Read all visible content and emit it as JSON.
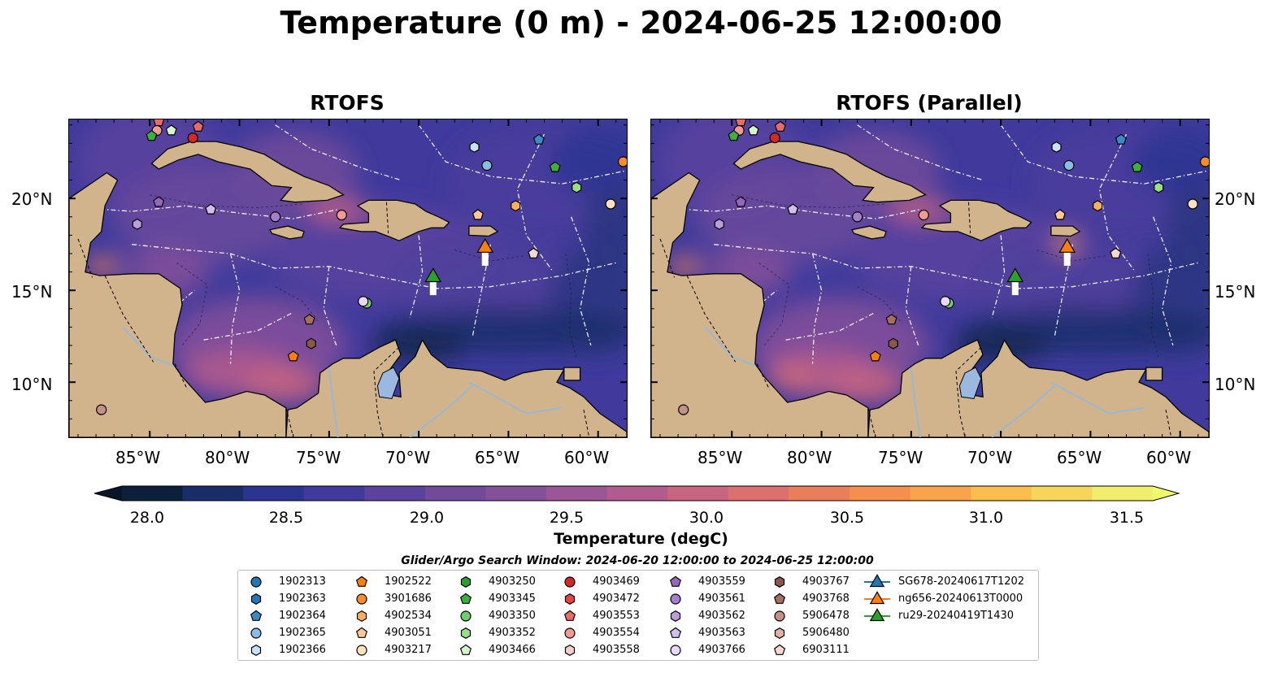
{
  "title": "Temperature (0 m) - 2024-06-25 12:00:00",
  "panels": [
    {
      "title": "RTOFS"
    },
    {
      "title": "RTOFS (Parallel)"
    }
  ],
  "axes": {
    "x_ticks": [
      "85°W",
      "80°W",
      "75°W",
      "70°W",
      "65°W",
      "60°W"
    ],
    "y_ticks": [
      "20°N",
      "15°N",
      "10°N"
    ],
    "lon_range": [
      -89.5,
      -58.4
    ],
    "lat_range": [
      7.0,
      24.3
    ]
  },
  "colorbar": {
    "label": "Temperature (degC)",
    "ticks": [
      "28.0",
      "28.5",
      "29.0",
      "29.5",
      "30.0",
      "30.5",
      "31.0",
      "31.5"
    ],
    "colors": [
      "#0d1f3a",
      "#1a2d6b",
      "#2b3590",
      "#3f3a9c",
      "#5b439d",
      "#714a9a",
      "#85509a",
      "#9a5696",
      "#b25b8e",
      "#c86580",
      "#db716f",
      "#ea7e5a",
      "#f48f4e",
      "#f9a44c",
      "#fbbe4d",
      "#f6d65a",
      "#f1ee6d"
    ],
    "under_color": "#0a1628",
    "over_color": "#eefb6c"
  },
  "search_window": "Glider/Argo Search Window: 2024-06-20 12:00:00 to 2024-06-25 12:00:00",
  "legend": {
    "items": [
      {
        "label": "1902313",
        "marker": "circle",
        "color": "#1f77b4"
      },
      {
        "label": "1902363",
        "marker": "hexagon",
        "color": "#1f77b4"
      },
      {
        "label": "1902364",
        "marker": "pentagon",
        "color": "#3a8ac6"
      },
      {
        "label": "1902365",
        "marker": "circle",
        "color": "#89bde4"
      },
      {
        "label": "1902366",
        "marker": "hexagon",
        "color": "#c7e1f5"
      },
      {
        "label": "1902522",
        "marker": "pentagon",
        "color": "#ff7f0e"
      },
      {
        "label": "3901686",
        "marker": "circle",
        "color": "#ff8c2a"
      },
      {
        "label": "4902534",
        "marker": "hexagon",
        "color": "#ffae5e"
      },
      {
        "label": "4903051",
        "marker": "pentagon",
        "color": "#ffc896"
      },
      {
        "label": "4903217",
        "marker": "circle",
        "color": "#ffe0c0"
      },
      {
        "label": "4903250",
        "marker": "hexagon",
        "color": "#2ca02c"
      },
      {
        "label": "4903345",
        "marker": "pentagon",
        "color": "#3cb03c"
      },
      {
        "label": "4903350",
        "marker": "circle",
        "color": "#6fcd6f"
      },
      {
        "label": "4903352",
        "marker": "hexagon",
        "color": "#98df8a"
      },
      {
        "label": "4903466",
        "marker": "pentagon",
        "color": "#d5f5cf"
      },
      {
        "label": "4903469",
        "marker": "circle",
        "color": "#d62728"
      },
      {
        "label": "4903472",
        "marker": "hexagon",
        "color": "#e04444"
      },
      {
        "label": "4903553",
        "marker": "pentagon",
        "color": "#ea6a6a"
      },
      {
        "label": "4903554",
        "marker": "circle",
        "color": "#f29a96"
      },
      {
        "label": "4903558",
        "marker": "hexagon",
        "color": "#fbd0cc"
      },
      {
        "label": "4903559",
        "marker": "pentagon",
        "color": "#9467bd"
      },
      {
        "label": "4903561",
        "marker": "circle",
        "color": "#a67fcc"
      },
      {
        "label": "4903562",
        "marker": "hexagon",
        "color": "#bb9ddd"
      },
      {
        "label": "4903563",
        "marker": "pentagon",
        "color": "#d2bdec"
      },
      {
        "label": "4903766",
        "marker": "circle",
        "color": "#ead8fa"
      },
      {
        "label": "4903767",
        "marker": "hexagon",
        "color": "#8c564b"
      },
      {
        "label": "4903768",
        "marker": "pentagon",
        "color": "#a76d5f"
      },
      {
        "label": "5906478",
        "marker": "circle",
        "color": "#c49186"
      },
      {
        "label": "5906480",
        "marker": "hexagon",
        "color": "#e0b1a6"
      },
      {
        "label": "6903111",
        "marker": "pentagon",
        "color": "#f7d8d0"
      },
      {
        "label": "SG678-20240617T1202",
        "marker": "triangle-line",
        "color": "#1f77b4"
      },
      {
        "label": "ng656-20240613T0000",
        "marker": "triangle-line",
        "color": "#ff7f0e"
      },
      {
        "label": "ru29-20240419T1430",
        "marker": "triangle-line",
        "color": "#2ca02c"
      }
    ]
  },
  "map_data": {
    "land_color": "#d2b48c",
    "ocean_color": "#3f3a9c",
    "glider_tracks": [
      {
        "name": "ru29-20240419T1430",
        "color": "#2ca02c",
        "lon": -69.2,
        "lat": 15.8
      },
      {
        "name": "ng656-20240613T0000",
        "color": "#ff7f0e",
        "lon": -66.3,
        "lat": 17.4
      }
    ],
    "floats": [
      {
        "id": "4903553",
        "marker": "pentagon",
        "color": "#ea6a6a",
        "lon": -84.5,
        "lat": 24.2
      },
      {
        "id": "4903554",
        "marker": "circle",
        "color": "#f29a96",
        "lon": -84.6,
        "lat": 23.7
      },
      {
        "id": "4903466",
        "marker": "pentagon",
        "color": "#d5f5cf",
        "lon": -83.8,
        "lat": 23.7
      },
      {
        "id": "4903553",
        "marker": "pentagon",
        "color": "#ea6a6a",
        "lon": -82.3,
        "lat": 23.9
      },
      {
        "id": "4903345",
        "marker": "pentagon",
        "color": "#3cb03c",
        "lon": -84.9,
        "lat": 23.4
      },
      {
        "id": "4903469",
        "marker": "circle",
        "color": "#d62728",
        "lon": -82.6,
        "lat": 23.3
      },
      {
        "id": "1902366",
        "marker": "hexagon",
        "color": "#c7e1f5",
        "lon": -66.9,
        "lat": 22.8
      },
      {
        "id": "1902364",
        "marker": "pentagon",
        "color": "#3a8ac6",
        "lon": -63.3,
        "lat": 23.2
      },
      {
        "id": "1902365",
        "marker": "circle",
        "color": "#89bde4",
        "lon": -66.2,
        "lat": 21.8
      },
      {
        "id": "4903345",
        "marker": "pentagon",
        "color": "#3cb03c",
        "lon": -62.4,
        "lat": 21.7
      },
      {
        "id": "3901686",
        "marker": "circle",
        "color": "#ff8c2a",
        "lon": -58.6,
        "lat": 22.0
      },
      {
        "id": "4903352",
        "marker": "hexagon",
        "color": "#98df8a",
        "lon": -61.2,
        "lat": 20.6
      },
      {
        "id": "4903217",
        "marker": "circle",
        "color": "#ffe0c0",
        "lon": -59.3,
        "lat": 19.7
      },
      {
        "id": "4902534",
        "marker": "hexagon",
        "color": "#ffae5e",
        "lon": -64.6,
        "lat": 19.6
      },
      {
        "id": "4903051",
        "marker": "pentagon",
        "color": "#ffc896",
        "lon": -66.7,
        "lat": 19.1
      },
      {
        "id": "4903559",
        "marker": "pentagon",
        "color": "#9467bd",
        "lon": -84.5,
        "lat": 19.8
      },
      {
        "id": "4903563",
        "marker": "pentagon",
        "color": "#d2bdec",
        "lon": -81.6,
        "lat": 19.4
      },
      {
        "id": "4903562",
        "marker": "hexagon",
        "color": "#bb9ddd",
        "lon": -85.7,
        "lat": 18.6
      },
      {
        "id": "4903561",
        "marker": "circle",
        "color": "#a67fcc",
        "lon": -78.0,
        "lat": 19.0
      },
      {
        "id": "4903554",
        "marker": "circle",
        "color": "#f29a96",
        "lon": -74.3,
        "lat": 19.1
      },
      {
        "id": "6903111",
        "marker": "pentagon",
        "color": "#f7d8d0",
        "lon": -63.6,
        "lat": 17.0
      },
      {
        "id": "4903350",
        "marker": "circle",
        "color": "#6fcd6f",
        "lon": -72.9,
        "lat": 14.3
      },
      {
        "id": "4903766",
        "marker": "circle",
        "color": "#ead8fa",
        "lon": -73.1,
        "lat": 14.4
      },
      {
        "id": "4903768",
        "marker": "pentagon",
        "color": "#a76d5f",
        "lon": -76.1,
        "lat": 13.4
      },
      {
        "id": "4903767",
        "marker": "hexagon",
        "color": "#8c564b",
        "lon": -76.0,
        "lat": 12.1
      },
      {
        "id": "1902522",
        "marker": "pentagon",
        "color": "#ff7f0e",
        "lon": -77.0,
        "lat": 11.4
      },
      {
        "id": "5906478",
        "marker": "circle",
        "color": "#c49186",
        "lon": -87.7,
        "lat": 8.5
      }
    ]
  }
}
